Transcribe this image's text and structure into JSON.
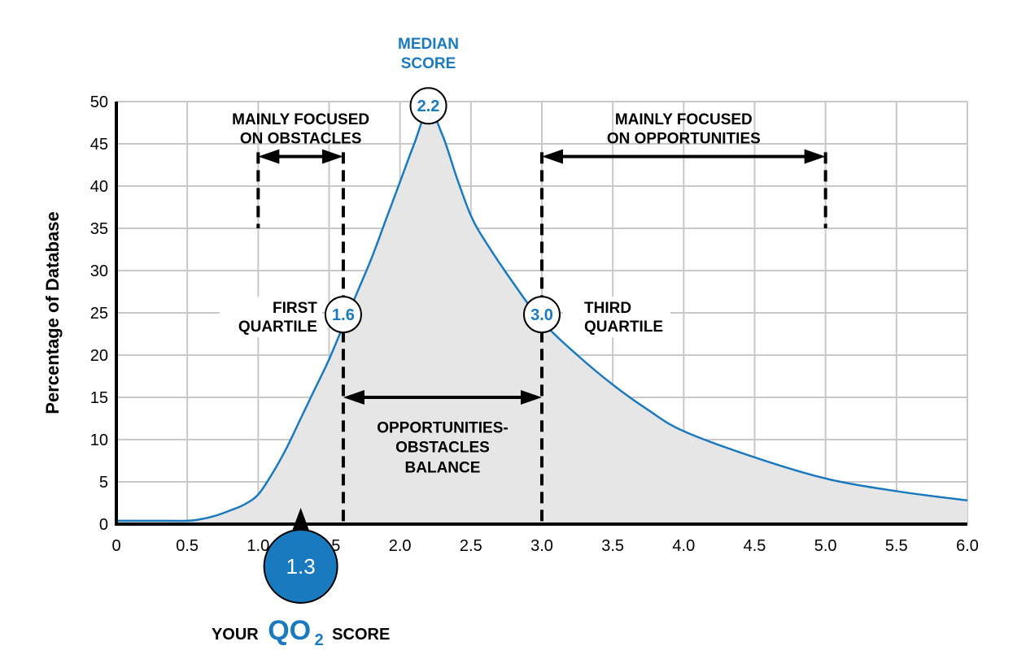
{
  "chart_data": {
    "type": "area",
    "title": "",
    "xlabel": "",
    "ylabel": "Percentage of Database",
    "xlim": [
      0,
      6.0
    ],
    "ylim": [
      0,
      50
    ],
    "x_ticks": [
      "0",
      "0.5",
      "1.0",
      "1.5",
      "2.0",
      "2.5",
      "3.0",
      "3.5",
      "4.0",
      "4.5",
      "5.0",
      "5.5",
      "6.0"
    ],
    "y_ticks": [
      "0",
      "5",
      "10",
      "15",
      "20",
      "25",
      "30",
      "35",
      "40",
      "45",
      "50"
    ],
    "grid": true,
    "colors": {
      "line": "#1a7abf",
      "fill": "#e6e6e6",
      "accent": "#1a7abf",
      "grid": "#c8c8c8"
    },
    "series": [
      {
        "x": [
          0,
          0.25,
          0.5,
          0.6,
          0.7,
          0.8,
          0.9,
          1.0,
          1.1,
          1.2,
          1.3,
          1.4,
          1.5,
          1.6,
          1.7,
          1.8,
          1.9,
          2.0,
          2.1,
          2.2,
          2.3,
          2.4,
          2.5,
          2.6,
          2.8,
          3.0,
          3.25,
          3.5,
          3.75,
          4.0,
          4.5,
          5.0,
          5.5,
          6.0
        ],
        "y": [
          0.4,
          0.4,
          0.4,
          0.6,
          1.0,
          1.6,
          2.3,
          3.5,
          6.0,
          9.0,
          12.5,
          16.0,
          19.5,
          23.5,
          27.5,
          31.5,
          36.0,
          40.5,
          45.0,
          49.0,
          46.0,
          41.0,
          36.5,
          33.5,
          28.5,
          24.0,
          20.0,
          16.5,
          13.5,
          11.0,
          7.9,
          5.4,
          3.9,
          2.8
        ]
      }
    ],
    "markers": {
      "median": {
        "value": 2.2,
        "label": "2.2",
        "caption_line1": "MEDIAN",
        "caption_line2": "SCORE"
      },
      "first_quartile": {
        "value": 1.6,
        "label": "1.6",
        "caption_line1": "FIRST",
        "caption_line2": "QUARTILE"
      },
      "third_quartile": {
        "value": 3.0,
        "label": "3.0",
        "caption_line1": "THIRD",
        "caption_line2": "QUARTILE"
      },
      "your_score": {
        "value": 1.3,
        "label": "1.3",
        "caption_your": "YOUR",
        "caption_qo": "QO",
        "caption_sub": "2",
        "caption_score": "SCORE"
      }
    },
    "ranges": {
      "obstacles": {
        "from": 1.0,
        "to": 1.6,
        "line1": "MAINLY FOCUSED",
        "line2": "ON OBSTACLES"
      },
      "opportunities": {
        "from": 3.0,
        "to": 5.0,
        "line1": "MAINLY FOCUSED",
        "line2": "ON OPPORTUNITIES"
      },
      "balance": {
        "from": 1.6,
        "to": 3.0,
        "line1": "OPPORTUNITIES-",
        "line2": "OBSTACLES",
        "line3": "BALANCE"
      }
    }
  }
}
